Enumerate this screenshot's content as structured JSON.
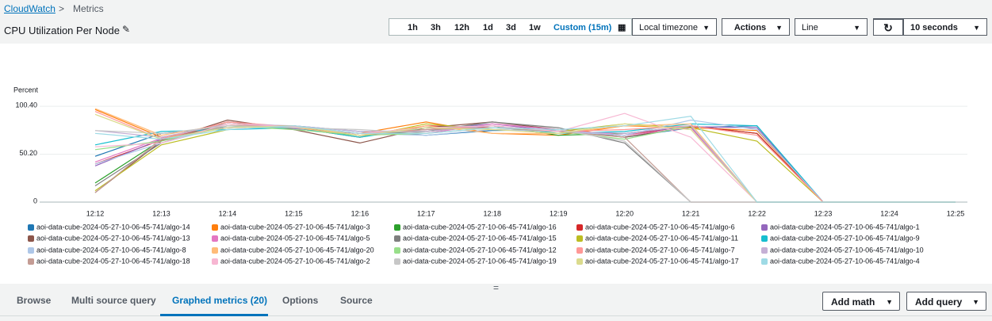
{
  "breadcrumb": {
    "items": [
      "CloudWatch",
      "Metrics"
    ]
  },
  "header": {
    "title": "CPU Utilization Per Node"
  },
  "toolbar": {
    "ranges": [
      "1h",
      "3h",
      "12h",
      "1d",
      "3d",
      "1w",
      "Custom (15m)"
    ],
    "timezone": "Local timezone",
    "actions": "Actions",
    "view": "Line",
    "refresh": "10 seconds"
  },
  "chart_data": {
    "type": "line",
    "ylabel": "Percent",
    "categories": [
      "12:12",
      "12:13",
      "12:14",
      "12:15",
      "12:16",
      "12:17",
      "12:18",
      "12:19",
      "12:20",
      "12:21",
      "12:22",
      "12:23",
      "12:24",
      "12:25"
    ],
    "ylim": [
      0,
      108
    ],
    "yticks": [
      0,
      {
        "value": 50.2,
        "label": "50.20"
      },
      {
        "value": 100.4,
        "label": "100.40"
      }
    ],
    "grid": true,
    "series": [
      {
        "name": "aoi-data-cube-2024-05-27-10-06-45-741/algo-14",
        "color": "#1f77b4",
        "values": [
          48,
          72,
          78,
          80,
          74,
          70,
          75,
          76,
          68,
          78,
          80,
          0,
          0,
          0
        ]
      },
      {
        "name": "aoi-data-cube-2024-05-27-10-06-45-741/algo-3",
        "color": "#ff7f0e",
        "values": [
          97,
          68,
          80,
          79,
          72,
          84,
          72,
          70,
          80,
          78,
          75,
          0,
          0,
          0
        ]
      },
      {
        "name": "aoi-data-cube-2024-05-27-10-06-45-741/algo-16",
        "color": "#2ca02c",
        "values": [
          20,
          65,
          82,
          78,
          70,
          74,
          80,
          70,
          72,
          80,
          72,
          0,
          0,
          0
        ]
      },
      {
        "name": "aoi-data-cube-2024-05-27-10-06-45-741/algo-6",
        "color": "#d62728",
        "values": [
          40,
          65,
          84,
          78,
          68,
          80,
          78,
          76,
          70,
          80,
          72,
          0,
          0,
          0
        ]
      },
      {
        "name": "aoi-data-cube-2024-05-27-10-06-45-741/algo-1",
        "color": "#9467bd",
        "values": [
          38,
          66,
          80,
          77,
          72,
          76,
          82,
          74,
          72,
          79,
          78,
          0,
          0,
          0
        ]
      },
      {
        "name": "aoi-data-cube-2024-05-27-10-06-45-741/algo-13",
        "color": "#8c564b",
        "values": [
          10,
          64,
          86,
          76,
          62,
          78,
          84,
          76,
          68,
          79,
          0,
          0,
          0,
          0
        ]
      },
      {
        "name": "aoi-data-cube-2024-05-27-10-06-45-741/algo-5",
        "color": "#e377c2",
        "values": [
          42,
          67,
          78,
          80,
          70,
          72,
          82,
          76,
          70,
          78,
          0,
          0,
          0,
          0
        ]
      },
      {
        "name": "aoi-data-cube-2024-05-27-10-06-45-741/algo-15",
        "color": "#7f7f7f",
        "values": [
          17,
          62,
          84,
          78,
          72,
          74,
          84,
          78,
          62,
          0,
          0,
          0,
          0,
          0
        ]
      },
      {
        "name": "aoi-data-cube-2024-05-27-10-06-45-741/algo-11",
        "color": "#bcbd22",
        "values": [
          12,
          60,
          76,
          79,
          68,
          82,
          76,
          74,
          82,
          78,
          64,
          0,
          0,
          0
        ]
      },
      {
        "name": "aoi-data-cube-2024-05-27-10-06-45-741/algo-9",
        "color": "#17becf",
        "values": [
          60,
          74,
          76,
          78,
          68,
          78,
          80,
          72,
          74,
          82,
          80,
          0,
          0,
          0
        ]
      },
      {
        "name": "aoi-data-cube-2024-05-27-10-06-45-741/algo-8",
        "color": "#aec7e8",
        "values": [
          40,
          62,
          80,
          80,
          72,
          70,
          76,
          74,
          70,
          86,
          76,
          0,
          0,
          0
        ]
      },
      {
        "name": "aoi-data-cube-2024-05-27-10-06-45-741/algo-20",
        "color": "#ffbb78",
        "values": [
          98,
          70,
          82,
          78,
          70,
          80,
          72,
          72,
          80,
          82,
          0,
          0,
          0,
          0
        ]
      },
      {
        "name": "aoi-data-cube-2024-05-27-10-06-45-741/algo-12",
        "color": "#98df8a",
        "values": [
          55,
          64,
          80,
          76,
          70,
          72,
          78,
          74,
          66,
          80,
          0,
          0,
          0,
          0
        ]
      },
      {
        "name": "aoi-data-cube-2024-05-27-10-06-45-741/algo-7",
        "color": "#ff9896",
        "values": [
          95,
          66,
          84,
          79,
          72,
          76,
          80,
          74,
          76,
          80,
          70,
          0,
          0,
          0
        ]
      },
      {
        "name": "aoi-data-cube-2024-05-27-10-06-45-741/algo-10",
        "color": "#c5b0d5",
        "values": [
          75,
          68,
          82,
          80,
          74,
          74,
          80,
          74,
          72,
          80,
          0,
          0,
          0,
          0
        ]
      },
      {
        "name": "aoi-data-cube-2024-05-27-10-06-45-741/algo-18",
        "color": "#c49c94",
        "values": [
          10,
          66,
          80,
          80,
          70,
          76,
          78,
          74,
          68,
          0,
          0,
          0,
          0,
          0
        ]
      },
      {
        "name": "aoi-data-cube-2024-05-27-10-06-45-741/algo-2",
        "color": "#f7b6d2",
        "values": [
          58,
          62,
          82,
          79,
          72,
          78,
          80,
          74,
          93,
          68,
          0,
          0,
          0,
          0
        ]
      },
      {
        "name": "aoi-data-cube-2024-05-27-10-06-45-741/algo-19",
        "color": "#c7c7c7",
        "values": [
          75,
          72,
          80,
          78,
          76,
          72,
          78,
          76,
          64,
          0,
          0,
          0,
          0,
          0
        ]
      },
      {
        "name": "aoi-data-cube-2024-05-27-10-06-45-741/algo-17",
        "color": "#dbdb8d",
        "values": [
          92,
          66,
          78,
          80,
          70,
          78,
          76,
          72,
          82,
          76,
          0,
          0,
          0,
          0
        ]
      },
      {
        "name": "aoi-data-cube-2024-05-27-10-06-45-741/algo-4",
        "color": "#9edae5",
        "values": [
          72,
          66,
          76,
          80,
          72,
          72,
          78,
          76,
          80,
          90,
          0,
          0,
          0,
          0
        ]
      }
    ]
  },
  "tabs": {
    "items": [
      "Browse",
      "Multi source query",
      "Graphed metrics (20)",
      "Options",
      "Source"
    ]
  },
  "buttons": {
    "add_math": "Add math",
    "add_query": "Add query"
  }
}
